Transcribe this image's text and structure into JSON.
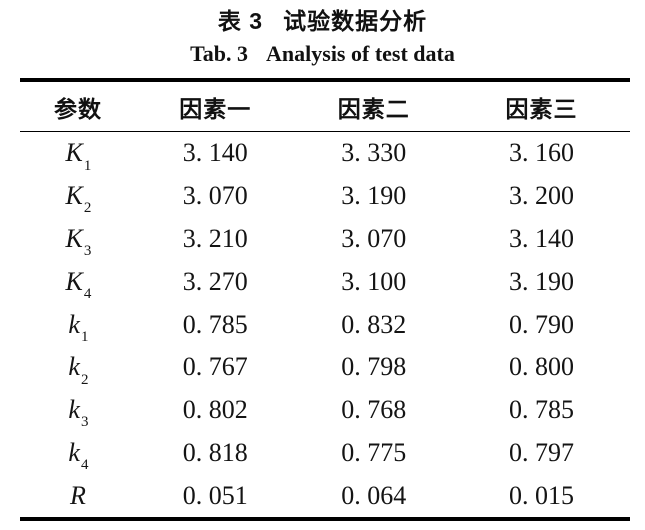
{
  "page": {
    "background": "#ffffff",
    "text_color": "#141414",
    "rule_color": "#000000"
  },
  "title": {
    "zh_label": "表 3",
    "zh_text": "试验数据分析",
    "en_label": "Tab. 3",
    "en_text": "Analysis of test data"
  },
  "table": {
    "columns": [
      "参数",
      "因素一",
      "因素二",
      "因素三"
    ],
    "rows": [
      {
        "param_base": "K",
        "param_sub": "1",
        "values": [
          "3. 140",
          "3. 330",
          "3. 160"
        ]
      },
      {
        "param_base": "K",
        "param_sub": "2",
        "values": [
          "3. 070",
          "3. 190",
          "3. 200"
        ]
      },
      {
        "param_base": "K",
        "param_sub": "3",
        "values": [
          "3. 210",
          "3. 070",
          "3. 140"
        ]
      },
      {
        "param_base": "K",
        "param_sub": "4",
        "values": [
          "3. 270",
          "3. 100",
          "3. 190"
        ]
      },
      {
        "param_base": "k",
        "param_sub": "1",
        "values": [
          "0. 785",
          "0. 832",
          "0. 790"
        ]
      },
      {
        "param_base": "k",
        "param_sub": "2",
        "values": [
          "0. 767",
          "0. 798",
          "0. 800"
        ]
      },
      {
        "param_base": "k",
        "param_sub": "3",
        "values": [
          "0. 802",
          "0. 768",
          "0. 785"
        ]
      },
      {
        "param_base": "k",
        "param_sub": "4",
        "values": [
          "0. 818",
          "0. 775",
          "0. 797"
        ]
      },
      {
        "param_base": "R",
        "param_sub": "",
        "values": [
          "0. 051",
          "0. 064",
          "0. 015"
        ]
      }
    ]
  }
}
